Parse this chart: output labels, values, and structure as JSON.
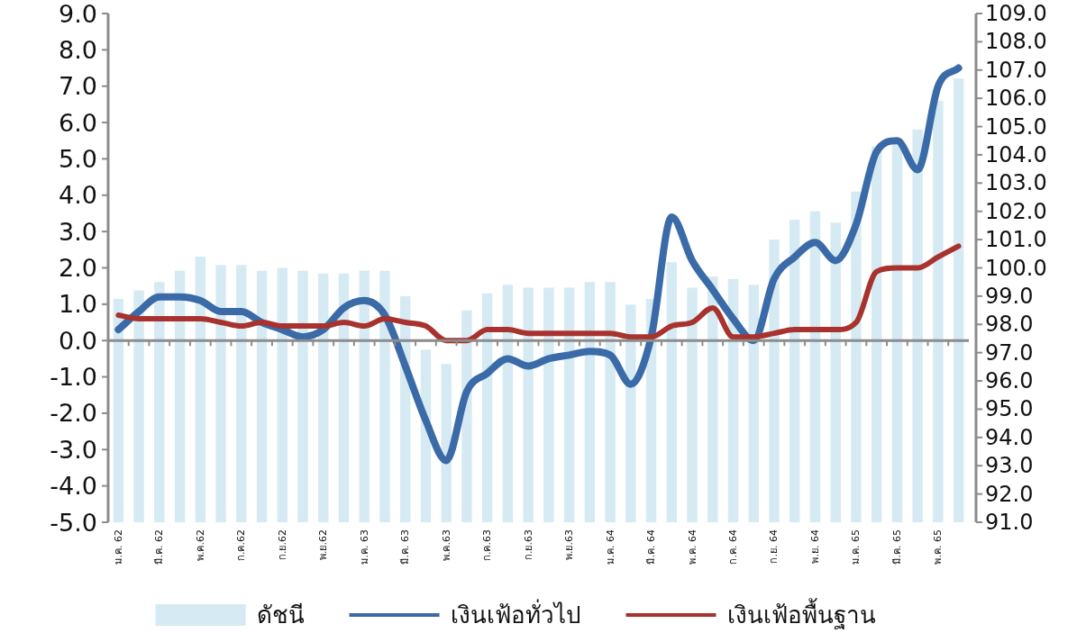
{
  "chart_data": {
    "type": "line",
    "categories": [
      "ม.ค. 62",
      null,
      "มี.ค. 62",
      null,
      "พ.ค.62",
      null,
      "ก.ค.62",
      null,
      "ก.ย.62",
      null,
      "พ.ย.62",
      null,
      "ม.ค. 63",
      null,
      "มี.ค. 63",
      null,
      "พ.ค.63",
      null,
      "ก.ค.63",
      null,
      "ก.ย.63",
      null,
      "พ.ย.63",
      null,
      "ม.ค. 64",
      null,
      "มี.ค. 64",
      null,
      "พ.ค. 64",
      null,
      "ก.ค. 64",
      null,
      "ก.ย. 64",
      null,
      "พ.ย. 64",
      null,
      "ม.ค. 65",
      null,
      "มี.ค. 65",
      null,
      "พ.ค. 65",
      null
    ],
    "series": [
      {
        "name": "ดัชนี",
        "type": "bar",
        "axis": "y2",
        "color": "#d5eaf2",
        "values": [
          98.9,
          99.2,
          99.5,
          99.9,
          100.4,
          100.1,
          100.1,
          99.9,
          100.0,
          99.9,
          99.8,
          99.8,
          99.9,
          99.9,
          99.0,
          97.1,
          96.6,
          98.5,
          99.1,
          99.4,
          99.3,
          99.3,
          99.3,
          99.5,
          99.5,
          98.7,
          98.9,
          100.2,
          99.3,
          99.7,
          99.6,
          99.4,
          101.0,
          101.7,
          102.0,
          101.6,
          102.7,
          104.3,
          104.6,
          104.9,
          105.9,
          106.7
        ]
      },
      {
        "name": "เงินเฟ้อทั่วไป",
        "color": "#3a6aa8",
        "values": [
          0.3,
          0.8,
          1.2,
          1.2,
          1.1,
          0.8,
          0.8,
          0.5,
          0.3,
          0.1,
          0.3,
          0.9,
          1.1,
          0.7,
          -0.7,
          -2.2,
          -3.3,
          -1.4,
          -0.9,
          -0.5,
          -0.7,
          -0.5,
          -0.4,
          -0.3,
          -0.4,
          -1.2,
          0.1,
          3.4,
          2.2,
          1.4,
          0.6,
          0.0,
          1.7,
          2.3,
          2.7,
          2.2,
          3.2,
          5.2,
          5.5,
          4.7,
          7.0,
          7.5
        ]
      },
      {
        "name": "เงินเฟ้อพื้นฐาน",
        "color": "#a8322d",
        "values": [
          0.7,
          0.6,
          0.6,
          0.6,
          0.6,
          0.5,
          0.4,
          0.5,
          0.4,
          0.4,
          0.4,
          0.5,
          0.4,
          0.6,
          0.5,
          0.4,
          0.0,
          0.0,
          0.3,
          0.3,
          0.2,
          0.2,
          0.2,
          0.2,
          0.2,
          0.1,
          0.1,
          0.4,
          0.5,
          0.9,
          0.1,
          0.1,
          0.2,
          0.3,
          0.3,
          0.3,
          0.5,
          1.9,
          2.0,
          2.0,
          2.3,
          2.6
        ]
      }
    ],
    "ylim": [
      -5,
      9
    ],
    "yticks": [
      {
        "value": -5,
        "label": "-5.0"
      },
      {
        "value": -4,
        "label": "-4.0"
      },
      {
        "value": -3,
        "label": "-3.0"
      },
      {
        "value": -2,
        "label": "-2.0"
      },
      {
        "value": -1,
        "label": "-1.0"
      },
      {
        "value": 0,
        "label": "0.0"
      },
      {
        "value": 1,
        "label": "1.0"
      },
      {
        "value": 2,
        "label": "2.0"
      },
      {
        "value": 3,
        "label": "3.0"
      },
      {
        "value": 4,
        "label": "4.0"
      },
      {
        "value": 5,
        "label": "5.0"
      },
      {
        "value": 6,
        "label": "6.0"
      },
      {
        "value": 7,
        "label": "7.0"
      },
      {
        "value": 8,
        "label": "8.0"
      },
      {
        "value": 9,
        "label": "9.0"
      }
    ],
    "y2lim": [
      91,
      109
    ],
    "y2ticks": [
      {
        "value": 91,
        "label": "91.0"
      },
      {
        "value": 92,
        "label": "92.0"
      },
      {
        "value": 93,
        "label": "93.0"
      },
      {
        "value": 94,
        "label": "94.0"
      },
      {
        "value": 95,
        "label": "95.0"
      },
      {
        "value": 96,
        "label": "96.0"
      },
      {
        "value": 97,
        "label": "97.0"
      },
      {
        "value": 98,
        "label": "98.0"
      },
      {
        "value": 99,
        "label": "99.0"
      },
      {
        "value": 100,
        "label": "100.0"
      },
      {
        "value": 101,
        "label": "101.0"
      },
      {
        "value": 102,
        "label": "102.0"
      },
      {
        "value": 103,
        "label": "103.0"
      },
      {
        "value": 104,
        "label": "104.0"
      },
      {
        "value": 105,
        "label": "105.0"
      },
      {
        "value": 106,
        "label": "106.0"
      },
      {
        "value": 107,
        "label": "107.0"
      },
      {
        "value": 108,
        "label": "108.0"
      },
      {
        "value": 109,
        "label": "109.0"
      }
    ],
    "legend": "bottom"
  }
}
